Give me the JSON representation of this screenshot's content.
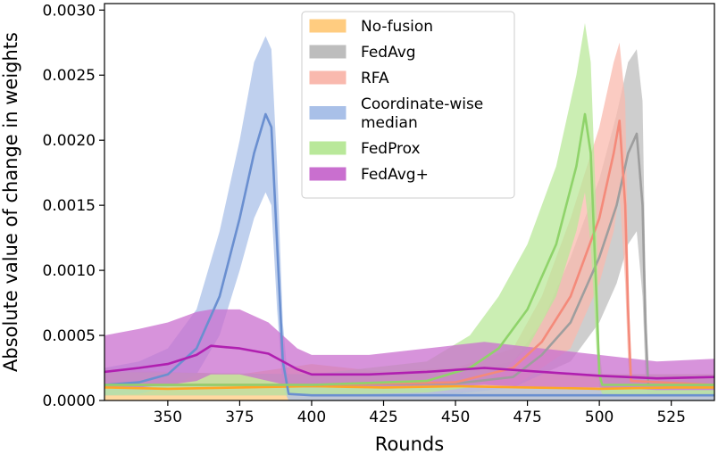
{
  "chart_data": {
    "type": "line",
    "xlabel": "Rounds",
    "ylabel": "Absolute value of change in weights",
    "xlim": [
      328,
      540
    ],
    "ylim": [
      0,
      0.00305
    ],
    "xticks": [
      350,
      375,
      400,
      425,
      450,
      475,
      500,
      525
    ],
    "xtick_labels": [
      "350",
      "375",
      "400",
      "425",
      "450",
      "475",
      "500",
      "525"
    ],
    "yticks": [
      0,
      0.0005,
      0.001,
      0.0015,
      0.002,
      0.0025,
      0.003
    ],
    "ytick_labels": [
      "0.0000",
      "0.0005",
      "0.0010",
      "0.0015",
      "0.0020",
      "0.0025",
      "0.0030"
    ],
    "grid": false,
    "legend_position": "top-center",
    "series": [
      {
        "name": "No-fusion",
        "color": "#ffa726",
        "band_color": "#ffcc80",
        "mean": [
          [
            328,
            0.0001
          ],
          [
            350,
            9e-05
          ],
          [
            375,
            0.0001
          ],
          [
            400,
            0.00011
          ],
          [
            425,
            0.0001
          ],
          [
            450,
            0.00011
          ],
          [
            475,
            0.0001
          ],
          [
            500,
            9e-05
          ],
          [
            525,
            0.0001
          ],
          [
            540,
            0.0001
          ]
        ],
        "band": [
          [
            328,
            0.0,
            0.00025
          ],
          [
            350,
            0.0,
            0.00022
          ],
          [
            375,
            0.0,
            0.0002
          ],
          [
            400,
            0.0,
            0.00028
          ],
          [
            425,
            0.0,
            0.00022
          ],
          [
            450,
            0.0,
            0.00024
          ],
          [
            475,
            0.0,
            0.00022
          ],
          [
            500,
            0.0,
            0.0002
          ],
          [
            525,
            0.0,
            0.0002
          ],
          [
            540,
            0.0,
            0.0002
          ]
        ]
      },
      {
        "name": "FedAvg",
        "color": "#9e9e9e",
        "band_color": "#bdbdbd",
        "mean": [
          [
            328,
            0.00012
          ],
          [
            400,
            0.00012
          ],
          [
            450,
            0.00013
          ],
          [
            470,
            0.00018
          ],
          [
            480,
            0.00035
          ],
          [
            490,
            0.0006
          ],
          [
            500,
            0.0011
          ],
          [
            506,
            0.0015
          ],
          [
            510,
            0.0019
          ],
          [
            513,
            0.00205
          ],
          [
            515,
            0.0015
          ],
          [
            516,
            0.0006
          ],
          [
            517,
            0.00012
          ],
          [
            540,
            0.00012
          ]
        ],
        "band": [
          [
            328,
            4e-05,
            0.00022
          ],
          [
            400,
            4e-05,
            0.0002
          ],
          [
            450,
            5e-05,
            0.00022
          ],
          [
            470,
            0.0001,
            0.0003
          ],
          [
            480,
            0.0002,
            0.0006
          ],
          [
            490,
            0.0003,
            0.0011
          ],
          [
            500,
            0.0006,
            0.0017
          ],
          [
            506,
            0.0009,
            0.0022
          ],
          [
            510,
            0.0012,
            0.0026
          ],
          [
            513,
            0.0013,
            0.0027
          ],
          [
            515,
            0.0008,
            0.0023
          ],
          [
            516,
            0.0002,
            0.001
          ],
          [
            517,
            5e-05,
            0.0002
          ],
          [
            540,
            4e-05,
            0.0002
          ]
        ]
      },
      {
        "name": "RFA",
        "color": "#f48a7a",
        "band_color": "#f9b9ae",
        "mean": [
          [
            328,
            0.00012
          ],
          [
            400,
            0.00012
          ],
          [
            450,
            0.00014
          ],
          [
            470,
            0.00025
          ],
          [
            480,
            0.00045
          ],
          [
            490,
            0.0008
          ],
          [
            500,
            0.0014
          ],
          [
            505,
            0.0019
          ],
          [
            507,
            0.00215
          ],
          [
            509,
            0.0015
          ],
          [
            510,
            0.0007
          ],
          [
            511,
            0.00015
          ],
          [
            540,
            0.00012
          ]
        ],
        "band": [
          [
            328,
            4e-05,
            0.00022
          ],
          [
            400,
            4e-05,
            0.0002
          ],
          [
            450,
            6e-05,
            0.00025
          ],
          [
            470,
            0.0001,
            0.0004
          ],
          [
            480,
            0.00025,
            0.0008
          ],
          [
            490,
            0.0004,
            0.0014
          ],
          [
            500,
            0.0009,
            0.0021
          ],
          [
            505,
            0.0013,
            0.0026
          ],
          [
            507,
            0.0016,
            0.00275
          ],
          [
            509,
            0.0009,
            0.0023
          ],
          [
            510,
            0.0003,
            0.0011
          ],
          [
            511,
            5e-05,
            0.0002
          ],
          [
            540,
            4e-05,
            0.0002
          ]
        ]
      },
      {
        "name": "Coordinate-wise median",
        "color": "#6a8fd0",
        "band_color": "#a9c0e8",
        "mean": [
          [
            328,
            0.00012
          ],
          [
            340,
            0.00014
          ],
          [
            350,
            0.0002
          ],
          [
            360,
            0.0004
          ],
          [
            368,
            0.0008
          ],
          [
            375,
            0.0014
          ],
          [
            380,
            0.0019
          ],
          [
            384,
            0.0022
          ],
          [
            386,
            0.0021
          ],
          [
            388,
            0.0012
          ],
          [
            390,
            0.0003
          ],
          [
            392,
            5e-05
          ],
          [
            400,
            4e-05
          ],
          [
            540,
            4e-05
          ]
        ],
        "band": [
          [
            328,
            4e-05,
            0.00025
          ],
          [
            340,
            5e-05,
            0.0003
          ],
          [
            350,
            0.0001,
            0.0004
          ],
          [
            360,
            0.0002,
            0.0007
          ],
          [
            368,
            0.0005,
            0.0013
          ],
          [
            375,
            0.001,
            0.002
          ],
          [
            380,
            0.0014,
            0.0026
          ],
          [
            384,
            0.0016,
            0.0028
          ],
          [
            386,
            0.0015,
            0.0027
          ],
          [
            388,
            0.0007,
            0.0018
          ],
          [
            390,
            0.0001,
            0.0006
          ],
          [
            392,
            0.0,
            0.0001
          ],
          [
            400,
            0.0,
            0.0001
          ],
          [
            540,
            0.0,
            0.0001
          ]
        ]
      },
      {
        "name": "FedProx",
        "color": "#8fd36a",
        "band_color": "#b9e89a",
        "mean": [
          [
            328,
            0.00012
          ],
          [
            400,
            0.00012
          ],
          [
            440,
            0.00015
          ],
          [
            455,
            0.00025
          ],
          [
            465,
            0.0004
          ],
          [
            475,
            0.0007
          ],
          [
            485,
            0.0012
          ],
          [
            492,
            0.0018
          ],
          [
            495,
            0.0022
          ],
          [
            497,
            0.0019
          ],
          [
            499,
            0.0008
          ],
          [
            500,
            0.0002
          ],
          [
            501,
            0.00012
          ],
          [
            540,
            0.00012
          ]
        ],
        "band": [
          [
            328,
            4e-05,
            0.00022
          ],
          [
            400,
            4e-05,
            0.0002
          ],
          [
            440,
            6e-05,
            0.0003
          ],
          [
            455,
            0.0001,
            0.0005
          ],
          [
            465,
            0.0002,
            0.0008
          ],
          [
            475,
            0.0004,
            0.0012
          ],
          [
            485,
            0.0008,
            0.0018
          ],
          [
            492,
            0.0013,
            0.0025
          ],
          [
            495,
            0.0016,
            0.0029
          ],
          [
            497,
            0.0012,
            0.0026
          ],
          [
            499,
            0.0004,
            0.0014
          ],
          [
            500,
            0.0001,
            0.0004
          ],
          [
            501,
            5e-05,
            0.0002
          ],
          [
            540,
            4e-05,
            0.0002
          ]
        ]
      },
      {
        "name": "FedAvg+",
        "color": "#b01fb0",
        "band_color": "#c96fcf",
        "mean": [
          [
            328,
            0.00022
          ],
          [
            340,
            0.00025
          ],
          [
            350,
            0.00028
          ],
          [
            360,
            0.00035
          ],
          [
            365,
            0.00042
          ],
          [
            375,
            0.0004
          ],
          [
            385,
            0.00036
          ],
          [
            395,
            0.00024
          ],
          [
            400,
            0.0002
          ],
          [
            420,
            0.0002
          ],
          [
            440,
            0.00022
          ],
          [
            460,
            0.00025
          ],
          [
            480,
            0.00022
          ],
          [
            500,
            0.00019
          ],
          [
            520,
            0.00017
          ],
          [
            540,
            0.00018
          ]
        ],
        "band": [
          [
            328,
            0.0001,
            0.0005
          ],
          [
            340,
            0.0001,
            0.00055
          ],
          [
            350,
            0.00012,
            0.0006
          ],
          [
            360,
            0.00015,
            0.00068
          ],
          [
            365,
            0.0002,
            0.0007
          ],
          [
            375,
            0.0002,
            0.0007
          ],
          [
            385,
            0.00015,
            0.0006
          ],
          [
            395,
            0.0001,
            0.0004
          ],
          [
            400,
            0.0001,
            0.00035
          ],
          [
            420,
            0.0001,
            0.00035
          ],
          [
            440,
            0.0001,
            0.0004
          ],
          [
            460,
            0.00012,
            0.00045
          ],
          [
            480,
            0.0001,
            0.0004
          ],
          [
            500,
            0.0001,
            0.00035
          ],
          [
            520,
            8e-05,
            0.0003
          ],
          [
            540,
            8e-05,
            0.00032
          ]
        ]
      }
    ]
  }
}
